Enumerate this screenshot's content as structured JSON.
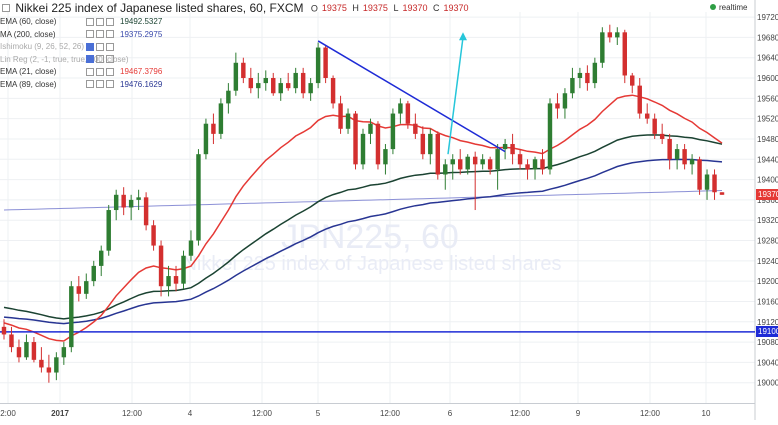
{
  "header": {
    "title": "Nikkei 225 index of Japanese listed shares, 60, FXCM",
    "ohlc": {
      "o_label": "O",
      "o": "19375",
      "h_label": "H",
      "h": "19375",
      "l_label": "L",
      "l": "19370",
      "c_label": "C",
      "c": "19370"
    },
    "realtime": "realtime"
  },
  "indicators": [
    {
      "name": "EMA (60, close)",
      "value": "19492.5327",
      "color": "#1b4332"
    },
    {
      "name": "MA (200, close)",
      "value": "19375.2975",
      "color": "#3949ab"
    },
    {
      "name": "Ishimoku (9, 26, 52, 26)",
      "value": "",
      "color": "#999999"
    },
    {
      "name": "Lin Reg (2, -1, true, true, 200, close)",
      "value": "",
      "color": "#999999"
    },
    {
      "name": "EMA (21, close)",
      "value": "19467.3796",
      "color": "#e53935"
    },
    {
      "name": "EMA (89, close)",
      "value": "19476.1629",
      "color": "#283593"
    }
  ],
  "price_tags": {
    "last": "19370",
    "hline": "19100"
  },
  "watermark": {
    "symbol": "JPN225, 60",
    "desc": "Nikkei 225 index of Japanese listed shares"
  },
  "chart_data": {
    "type": "candlestick",
    "title": "Nikkei 225 index of Japanese listed shares, 60, FXCM",
    "ylim": [
      18960,
      19730
    ],
    "y_ticks": [
      19720,
      19680,
      19640,
      19600,
      19560,
      19520,
      19480,
      19440,
      19400,
      19360,
      19320,
      19280,
      19240,
      19200,
      19160,
      19120,
      19080,
      19040,
      19000
    ],
    "x_tick_labels": [
      "2:00",
      "2017",
      "12:00",
      "4",
      "12:00",
      "5",
      "12:00",
      "6",
      "12:00",
      "9",
      "12:00",
      "10"
    ],
    "horizontal_line": 19100,
    "candles": [
      {
        "o": 19110,
        "h": 19125,
        "l": 19085,
        "c": 19095
      },
      {
        "o": 19095,
        "h": 19110,
        "l": 19060,
        "c": 19070
      },
      {
        "o": 19070,
        "h": 19085,
        "l": 19040,
        "c": 19050
      },
      {
        "o": 19050,
        "h": 19095,
        "l": 19045,
        "c": 19080
      },
      {
        "o": 19080,
        "h": 19090,
        "l": 19040,
        "c": 19045
      },
      {
        "o": 19045,
        "h": 19070,
        "l": 19020,
        "c": 19030
      },
      {
        "o": 19030,
        "h": 19055,
        "l": 19000,
        "c": 19020
      },
      {
        "o": 19020,
        "h": 19060,
        "l": 19005,
        "c": 19050
      },
      {
        "o": 19050,
        "h": 19080,
        "l": 19035,
        "c": 19070
      },
      {
        "o": 19070,
        "h": 19200,
        "l": 19060,
        "c": 19190
      },
      {
        "o": 19190,
        "h": 19210,
        "l": 19160,
        "c": 19175
      },
      {
        "o": 19175,
        "h": 19215,
        "l": 19165,
        "c": 19200
      },
      {
        "o": 19200,
        "h": 19240,
        "l": 19190,
        "c": 19230
      },
      {
        "o": 19230,
        "h": 19270,
        "l": 19210,
        "c": 19260
      },
      {
        "o": 19260,
        "h": 19350,
        "l": 19250,
        "c": 19340
      },
      {
        "o": 19340,
        "h": 19380,
        "l": 19320,
        "c": 19370
      },
      {
        "o": 19370,
        "h": 19385,
        "l": 19330,
        "c": 19345
      },
      {
        "o": 19345,
        "h": 19370,
        "l": 19320,
        "c": 19360
      },
      {
        "o": 19360,
        "h": 19380,
        "l": 19340,
        "c": 19365
      },
      {
        "o": 19365,
        "h": 19375,
        "l": 19300,
        "c": 19310
      },
      {
        "o": 19310,
        "h": 19320,
        "l": 19260,
        "c": 19270
      },
      {
        "o": 19270,
        "h": 19280,
        "l": 19170,
        "c": 19190
      },
      {
        "o": 19190,
        "h": 19230,
        "l": 19170,
        "c": 19210
      },
      {
        "o": 19210,
        "h": 19230,
        "l": 19180,
        "c": 19195
      },
      {
        "o": 19195,
        "h": 19260,
        "l": 19185,
        "c": 19250
      },
      {
        "o": 19250,
        "h": 19300,
        "l": 19240,
        "c": 19280
      },
      {
        "o": 19280,
        "h": 19460,
        "l": 19270,
        "c": 19450
      },
      {
        "o": 19450,
        "h": 19520,
        "l": 19440,
        "c": 19510
      },
      {
        "o": 19510,
        "h": 19530,
        "l": 19470,
        "c": 19490
      },
      {
        "o": 19490,
        "h": 19560,
        "l": 19480,
        "c": 19550
      },
      {
        "o": 19550,
        "h": 19590,
        "l": 19530,
        "c": 19575
      },
      {
        "o": 19575,
        "h": 19650,
        "l": 19565,
        "c": 19630
      },
      {
        "o": 19630,
        "h": 19640,
        "l": 19590,
        "c": 19600
      },
      {
        "o": 19600,
        "h": 19620,
        "l": 19570,
        "c": 19580
      },
      {
        "o": 19580,
        "h": 19610,
        "l": 19560,
        "c": 19590
      },
      {
        "o": 19590,
        "h": 19615,
        "l": 19575,
        "c": 19600
      },
      {
        "o": 19600,
        "h": 19610,
        "l": 19565,
        "c": 19570
      },
      {
        "o": 19570,
        "h": 19600,
        "l": 19555,
        "c": 19590
      },
      {
        "o": 19590,
        "h": 19610,
        "l": 19575,
        "c": 19580
      },
      {
        "o": 19580,
        "h": 19620,
        "l": 19570,
        "c": 19610
      },
      {
        "o": 19610,
        "h": 19620,
        "l": 19560,
        "c": 19570
      },
      {
        "o": 19570,
        "h": 19600,
        "l": 19555,
        "c": 19590
      },
      {
        "o": 19590,
        "h": 19670,
        "l": 19580,
        "c": 19660
      },
      {
        "o": 19660,
        "h": 19665,
        "l": 19590,
        "c": 19600
      },
      {
        "o": 19600,
        "h": 19605,
        "l": 19540,
        "c": 19550
      },
      {
        "o": 19550,
        "h": 19565,
        "l": 19490,
        "c": 19500
      },
      {
        "o": 19500,
        "h": 19540,
        "l": 19490,
        "c": 19530
      },
      {
        "o": 19530,
        "h": 19535,
        "l": 19420,
        "c": 19430
      },
      {
        "o": 19430,
        "h": 19500,
        "l": 19420,
        "c": 19490
      },
      {
        "o": 19490,
        "h": 19520,
        "l": 19470,
        "c": 19510
      },
      {
        "o": 19510,
        "h": 19515,
        "l": 19420,
        "c": 19430
      },
      {
        "o": 19430,
        "h": 19470,
        "l": 19410,
        "c": 19460
      },
      {
        "o": 19460,
        "h": 19540,
        "l": 19450,
        "c": 19530
      },
      {
        "o": 19530,
        "h": 19560,
        "l": 19510,
        "c": 19550
      },
      {
        "o": 19550,
        "h": 19555,
        "l": 19500,
        "c": 19510
      },
      {
        "o": 19510,
        "h": 19530,
        "l": 19480,
        "c": 19490
      },
      {
        "o": 19490,
        "h": 19505,
        "l": 19440,
        "c": 19450
      },
      {
        "o": 19450,
        "h": 19500,
        "l": 19430,
        "c": 19490
      },
      {
        "o": 19490,
        "h": 19495,
        "l": 19400,
        "c": 19410
      },
      {
        "o": 19410,
        "h": 19440,
        "l": 19380,
        "c": 19430
      },
      {
        "o": 19430,
        "h": 19450,
        "l": 19400,
        "c": 19440
      },
      {
        "o": 19440,
        "h": 19460,
        "l": 19410,
        "c": 19420
      },
      {
        "o": 19420,
        "h": 19450,
        "l": 19410,
        "c": 19445
      },
      {
        "o": 19445,
        "h": 19455,
        "l": 19340,
        "c": 19430
      },
      {
        "o": 19430,
        "h": 19450,
        "l": 19420,
        "c": 19440
      },
      {
        "o": 19440,
        "h": 19445,
        "l": 19410,
        "c": 19420
      },
      {
        "o": 19420,
        "h": 19470,
        "l": 19380,
        "c": 19460
      },
      {
        "o": 19460,
        "h": 19480,
        "l": 19440,
        "c": 19470
      },
      {
        "o": 19470,
        "h": 19490,
        "l": 19430,
        "c": 19450
      },
      {
        "o": 19450,
        "h": 19460,
        "l": 19420,
        "c": 19430
      },
      {
        "o": 19430,
        "h": 19440,
        "l": 19400,
        "c": 19420
      },
      {
        "o": 19420,
        "h": 19445,
        "l": 19400,
        "c": 19440
      },
      {
        "o": 19440,
        "h": 19460,
        "l": 19410,
        "c": 19420
      },
      {
        "o": 19420,
        "h": 19560,
        "l": 19410,
        "c": 19550
      },
      {
        "o": 19550,
        "h": 19570,
        "l": 19520,
        "c": 19540
      },
      {
        "o": 19540,
        "h": 19580,
        "l": 19520,
        "c": 19570
      },
      {
        "o": 19570,
        "h": 19620,
        "l": 19560,
        "c": 19600
      },
      {
        "o": 19600,
        "h": 19620,
        "l": 19580,
        "c": 19610
      },
      {
        "o": 19610,
        "h": 19625,
        "l": 19575,
        "c": 19590
      },
      {
        "o": 19590,
        "h": 19640,
        "l": 19580,
        "c": 19630
      },
      {
        "o": 19630,
        "h": 19700,
        "l": 19620,
        "c": 19690
      },
      {
        "o": 19690,
        "h": 19705,
        "l": 19670,
        "c": 19680
      },
      {
        "o": 19680,
        "h": 19700,
        "l": 19665,
        "c": 19690
      },
      {
        "o": 19690,
        "h": 19695,
        "l": 19590,
        "c": 19605
      },
      {
        "o": 19605,
        "h": 19610,
        "l": 19570,
        "c": 19585
      },
      {
        "o": 19585,
        "h": 19600,
        "l": 19520,
        "c": 19530
      },
      {
        "o": 19530,
        "h": 19550,
        "l": 19510,
        "c": 19520
      },
      {
        "o": 19520,
        "h": 19530,
        "l": 19480,
        "c": 19490
      },
      {
        "o": 19490,
        "h": 19510,
        "l": 19470,
        "c": 19480
      },
      {
        "o": 19480,
        "h": 19490,
        "l": 19420,
        "c": 19440
      },
      {
        "o": 19440,
        "h": 19470,
        "l": 19420,
        "c": 19460
      },
      {
        "o": 19460,
        "h": 19470,
        "l": 19420,
        "c": 19430
      },
      {
        "o": 19430,
        "h": 19450,
        "l": 19410,
        "c": 19440
      },
      {
        "o": 19440,
        "h": 19445,
        "l": 19370,
        "c": 19380
      },
      {
        "o": 19380,
        "h": 19420,
        "l": 19360,
        "c": 19410
      },
      {
        "o": 19410,
        "h": 19420,
        "l": 19360,
        "c": 19375
      },
      {
        "o": 19375,
        "h": 19375,
        "l": 19370,
        "c": 19370
      }
    ]
  }
}
